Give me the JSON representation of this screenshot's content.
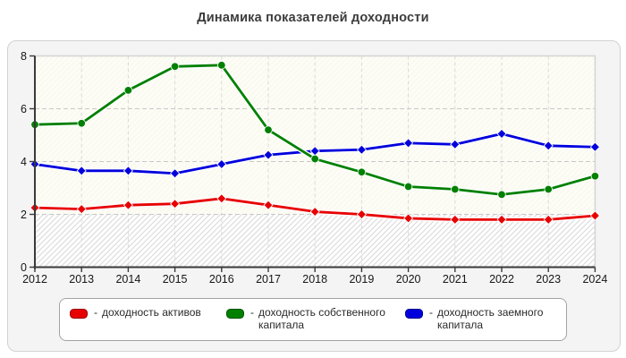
{
  "title": "Динамика показателей доходности",
  "legend": {
    "prefix": "-"
  },
  "chart_data": {
    "type": "line",
    "title": "Динамика показателей доходности",
    "x": [
      2012,
      2013,
      2014,
      2015,
      2016,
      2017,
      2018,
      2019,
      2020,
      2021,
      2022,
      2023,
      2024
    ],
    "yticks": [
      0,
      2,
      4,
      6,
      8
    ],
    "ylim": [
      0,
      8
    ],
    "grid": "dashed",
    "legend_position": "bottom",
    "plot_background": {
      "main": "#fafaf0",
      "band_below_2": "#ffffff",
      "hatch": "diagonal"
    },
    "series": [
      {
        "key": "assets-return",
        "name": "доходность активов",
        "color": "#e80000",
        "marker": "diamond",
        "values": [
          2.25,
          2.2,
          2.35,
          2.4,
          2.6,
          2.35,
          2.1,
          2.0,
          1.85,
          1.8,
          1.8,
          1.8,
          1.95
        ]
      },
      {
        "key": "equity-return",
        "name": "доходность собственного капитала",
        "color": "#008000",
        "marker": "circle",
        "values": [
          5.4,
          5.45,
          6.7,
          7.6,
          7.65,
          5.2,
          4.1,
          3.6,
          3.05,
          2.95,
          2.75,
          2.95,
          3.45
        ]
      },
      {
        "key": "debt-return",
        "name": "доходность заемного капитала",
        "color": "#0000dd",
        "marker": "diamond",
        "values": [
          3.9,
          3.65,
          3.65,
          3.55,
          3.9,
          4.25,
          4.4,
          4.45,
          4.7,
          4.65,
          5.05,
          4.6,
          4.55
        ]
      }
    ]
  }
}
